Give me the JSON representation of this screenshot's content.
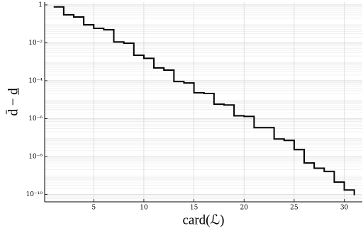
{
  "chart_data": {
    "type": "step",
    "x_label": "card(ℒ)",
    "y_label": "d̄ − d̲",
    "x": [
      1,
      2,
      3,
      4,
      5,
      6,
      7,
      8,
      9,
      10,
      11,
      12,
      13,
      14,
      15,
      16,
      17,
      18,
      19,
      20,
      21,
      22,
      23,
      24,
      25,
      26,
      27,
      28,
      29,
      30,
      31
    ],
    "values": [
      0.78,
      0.3,
      0.23,
      0.089,
      0.058,
      0.049,
      0.011,
      0.0095,
      0.0022,
      0.0015,
      0.00047,
      0.00036,
      9e-05,
      7.6e-05,
      2.3e-05,
      2.1e-05,
      5.7e-06,
      5.2e-06,
      1.4e-06,
      1.3e-06,
      3.3e-07,
      3.3e-07,
      8.3e-08,
      7e-08,
      2.3e-08,
      4.5e-09,
      2.4e-09,
      1.6e-09,
      4.4e-10,
      1.7e-10,
      9e-11
    ],
    "color": "#000000",
    "xlim": [
      0.1,
      31.8
    ],
    "xticks": [
      5,
      10,
      15,
      20,
      25,
      30
    ],
    "ylim": [
      4e-11,
      1.4
    ],
    "yscale": "log",
    "yticks": [
      1,
      {
        "value": 0.01,
        "label": "10⁻²"
      },
      {
        "value": 0.0001,
        "label": "10⁻⁴"
      },
      {
        "value": 1e-06,
        "label": "10⁻⁶"
      },
      {
        "value": 1e-08,
        "label": "10⁻⁸"
      },
      {
        "value": 1e-10,
        "label": "10⁻¹⁰"
      }
    ],
    "grid": true,
    "minor_grid": true
  }
}
